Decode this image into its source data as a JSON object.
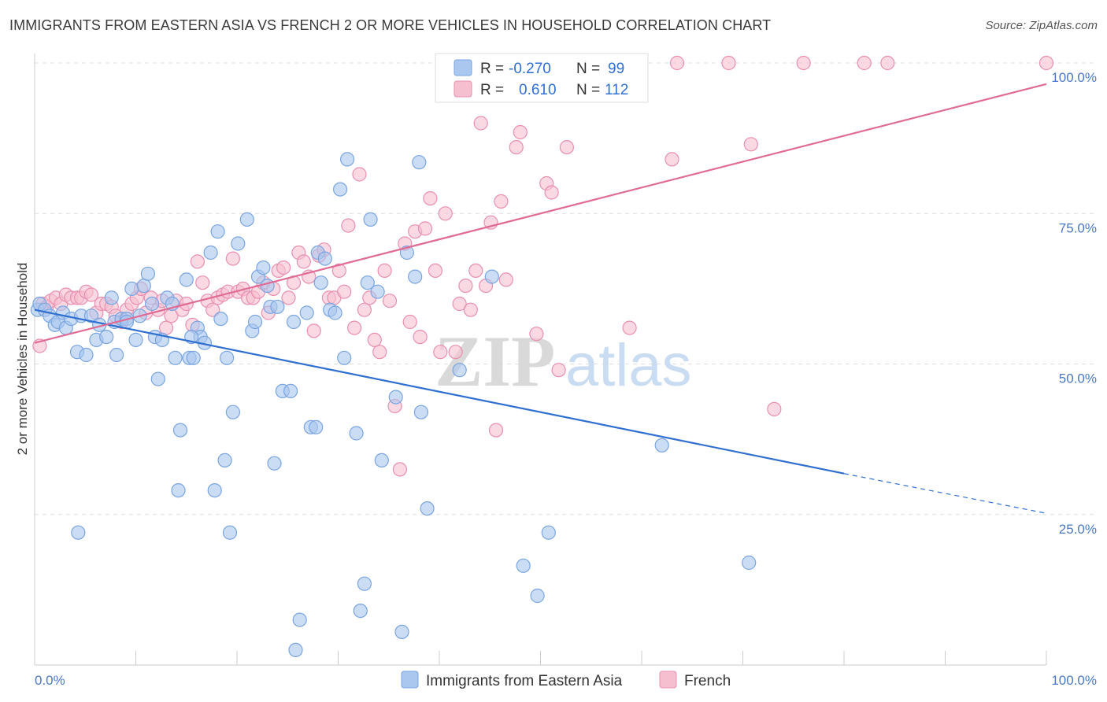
{
  "title": "IMMIGRANTS FROM EASTERN ASIA VS FRENCH 2 OR MORE VEHICLES IN HOUSEHOLD CORRELATION CHART",
  "source": "Source: ZipAtlas.com",
  "watermark": {
    "zip": "ZIP",
    "atlas": "atlas"
  },
  "colors": {
    "blue": "#a9c7ef",
    "blue_line": "#2f6fd0",
    "blue_stroke": "#7aa5e0",
    "pink": "#f6bfd0",
    "pink_line": "#e06c95",
    "pink_stroke": "#e98fb0",
    "axis_text": "#4a78c4",
    "grid": "#dddddd"
  },
  "stats_legend": {
    "row1": {
      "r_label": "R =",
      "r_value": "-0.270",
      "n_label": "N =",
      "n_value": "99"
    },
    "row2": {
      "r_label": "R =",
      "r_value": "0.610",
      "n_label": "N =",
      "n_value": "112"
    }
  },
  "chart_data": {
    "type": "scatter",
    "title": "IMMIGRANTS FROM EASTERN ASIA VS FRENCH 2 OR MORE VEHICLES IN HOUSEHOLD CORRELATION CHART",
    "xlabel": "",
    "ylabel": "2 or more Vehicles in Household",
    "xlim": [
      0,
      100
    ],
    "ylim": [
      0,
      100
    ],
    "x_tick_labels": [
      "0.0%",
      "100.0%"
    ],
    "y_tick_labels": [
      "25.0%",
      "50.0%",
      "75.0%",
      "100.0%"
    ],
    "y_ticks": [
      25,
      50,
      75,
      100
    ],
    "grid": true,
    "legend_position": "bottom",
    "series": [
      {
        "name": "Immigrants from Eastern Asia",
        "color": "#a9c7ef",
        "r": -0.27,
        "n": 99,
        "trend": {
          "x0": 0,
          "y0": 59,
          "x1": 80,
          "y1": 31.8,
          "dash_to_x": 100,
          "dash_to_y": 25.2
        },
        "points": [
          [
            0.3,
            59
          ],
          [
            0.5,
            60
          ],
          [
            1,
            59
          ],
          [
            1.5,
            58
          ],
          [
            2,
            56.5
          ],
          [
            2.3,
            57
          ],
          [
            2.8,
            58.5
          ],
          [
            3.1,
            56
          ],
          [
            3.6,
            57.5
          ],
          [
            4.2,
            52
          ],
          [
            4.6,
            58
          ],
          [
            5.1,
            51.5
          ],
          [
            5.6,
            58
          ],
          [
            6.1,
            54
          ],
          [
            6.4,
            56.5
          ],
          [
            7.1,
            54.5
          ],
          [
            7.6,
            61
          ],
          [
            7.9,
            57
          ],
          [
            8.1,
            51.5
          ],
          [
            8.6,
            57.5
          ],
          [
            9.1,
            57.5
          ],
          [
            9.6,
            62.5
          ],
          [
            10,
            54
          ],
          [
            10.4,
            58
          ],
          [
            10.8,
            63
          ],
          [
            11.2,
            65
          ],
          [
            11.6,
            60
          ],
          [
            11.9,
            54.5
          ],
          [
            12.2,
            47.5
          ],
          [
            12.6,
            54
          ],
          [
            13.1,
            61
          ],
          [
            13.6,
            60
          ],
          [
            13.9,
            51
          ],
          [
            14.2,
            29
          ],
          [
            14.4,
            39
          ],
          [
            15,
            64
          ],
          [
            15.3,
            51
          ],
          [
            15.7,
            51
          ],
          [
            16.1,
            56
          ],
          [
            16.4,
            54.5
          ],
          [
            16.8,
            53.5
          ],
          [
            17.4,
            68.5
          ],
          [
            17.8,
            29
          ],
          [
            18.1,
            72
          ],
          [
            18.4,
            57.5
          ],
          [
            18.8,
            34
          ],
          [
            19,
            51
          ],
          [
            19.3,
            22
          ],
          [
            19.6,
            42
          ],
          [
            20.1,
            70
          ],
          [
            21,
            74
          ],
          [
            21.5,
            55.5
          ],
          [
            21.8,
            57
          ],
          [
            22.1,
            64.5
          ],
          [
            22.6,
            66
          ],
          [
            23,
            63
          ],
          [
            23.3,
            59.5
          ],
          [
            23.7,
            33.5
          ],
          [
            24,
            59.5
          ],
          [
            24.5,
            45.5
          ],
          [
            25.3,
            45.5
          ],
          [
            25.6,
            57
          ],
          [
            25.8,
            2.5
          ],
          [
            26.2,
            7.5
          ],
          [
            26.9,
            58.5
          ],
          [
            27.3,
            39.5
          ],
          [
            27.8,
            39.5
          ],
          [
            28,
            68.5
          ],
          [
            28.3,
            63.5
          ],
          [
            28.7,
            67.5
          ],
          [
            29.2,
            59
          ],
          [
            29.7,
            58.5
          ],
          [
            30.2,
            79
          ],
          [
            30.6,
            51
          ],
          [
            30.9,
            84
          ],
          [
            31.8,
            38.5
          ],
          [
            32.2,
            9
          ],
          [
            32.6,
            13.5
          ],
          [
            32.9,
            63.5
          ],
          [
            33.2,
            74
          ],
          [
            33.9,
            62
          ],
          [
            34.3,
            34
          ],
          [
            35.7,
            44.5
          ],
          [
            36.3,
            5.5
          ],
          [
            36.8,
            68.5
          ],
          [
            37.6,
            64.5
          ],
          [
            38,
            83.5
          ],
          [
            38.2,
            42
          ],
          [
            38.8,
            26
          ],
          [
            42,
            49
          ],
          [
            45.2,
            64.5
          ],
          [
            48.3,
            16.5
          ],
          [
            49.7,
            11.5
          ],
          [
            50.8,
            22
          ],
          [
            62,
            36.5
          ],
          [
            70.6,
            17
          ],
          [
            4.3,
            22
          ],
          [
            9.1,
            57
          ],
          [
            15.5,
            54.5
          ]
        ]
      },
      {
        "name": "French",
        "color": "#f6bfd0",
        "r": 0.61,
        "n": 112,
        "trend": {
          "x0": 0,
          "y0": 53.5,
          "x1": 100,
          "y1": 96.5
        },
        "points": [
          [
            0.5,
            53
          ],
          [
            0.8,
            60
          ],
          [
            1.2,
            59.5
          ],
          [
            1.6,
            60.5
          ],
          [
            2.1,
            61
          ],
          [
            2.6,
            60
          ],
          [
            3.1,
            61.5
          ],
          [
            3.6,
            61
          ],
          [
            4.2,
            61
          ],
          [
            4.6,
            61
          ],
          [
            5.1,
            62
          ],
          [
            5.6,
            61.5
          ],
          [
            6.1,
            58.5
          ],
          [
            6.6,
            60
          ],
          [
            7.1,
            60
          ],
          [
            7.6,
            59.5
          ],
          [
            8,
            58
          ],
          [
            8.6,
            57
          ],
          [
            9.1,
            59
          ],
          [
            9.6,
            60
          ],
          [
            10.1,
            61
          ],
          [
            10.5,
            62.5
          ],
          [
            11,
            58.5
          ],
          [
            11.5,
            61
          ],
          [
            12.2,
            59
          ],
          [
            12.6,
            60.5
          ],
          [
            13,
            56
          ],
          [
            13.5,
            58
          ],
          [
            14,
            60.5
          ],
          [
            14.6,
            59
          ],
          [
            15,
            60
          ],
          [
            15.6,
            56.5
          ],
          [
            16.1,
            67
          ],
          [
            16.6,
            63.5
          ],
          [
            17.1,
            60.5
          ],
          [
            17.6,
            59
          ],
          [
            18.1,
            61
          ],
          [
            18.6,
            61.5
          ],
          [
            19.1,
            62
          ],
          [
            19.6,
            67.5
          ],
          [
            20.1,
            62
          ],
          [
            20.6,
            62.5
          ],
          [
            21.1,
            61
          ],
          [
            21.6,
            61
          ],
          [
            22.1,
            62
          ],
          [
            22.6,
            63.5
          ],
          [
            23.1,
            58.5
          ],
          [
            23.6,
            62.5
          ],
          [
            24.1,
            65.5
          ],
          [
            24.6,
            66
          ],
          [
            25.1,
            61
          ],
          [
            25.6,
            63.5
          ],
          [
            26.1,
            68.5
          ],
          [
            26.6,
            67
          ],
          [
            27.1,
            64.5
          ],
          [
            27.6,
            55.5
          ],
          [
            28.1,
            68
          ],
          [
            28.6,
            69
          ],
          [
            29.1,
            61
          ],
          [
            29.6,
            61
          ],
          [
            30.1,
            65.5
          ],
          [
            30.6,
            62
          ],
          [
            31,
            73
          ],
          [
            31.6,
            56
          ],
          [
            32.1,
            81.5
          ],
          [
            32.6,
            59
          ],
          [
            33.1,
            61
          ],
          [
            33.6,
            54
          ],
          [
            34.1,
            52
          ],
          [
            34.6,
            65.5
          ],
          [
            35.1,
            60.5
          ],
          [
            35.6,
            43
          ],
          [
            36.1,
            32.5
          ],
          [
            36.6,
            70
          ],
          [
            37.1,
            57
          ],
          [
            37.6,
            72
          ],
          [
            38.1,
            54.5
          ],
          [
            38.6,
            72.5
          ],
          [
            39.1,
            77.5
          ],
          [
            39.6,
            65.5
          ],
          [
            40.1,
            52
          ],
          [
            40.6,
            75
          ],
          [
            41.6,
            52
          ],
          [
            42,
            60
          ],
          [
            42.6,
            63
          ],
          [
            43.1,
            59
          ],
          [
            43.6,
            65.5
          ],
          [
            44.1,
            90
          ],
          [
            44.6,
            63
          ],
          [
            45.1,
            73.5
          ],
          [
            45.6,
            39
          ],
          [
            46.1,
            77
          ],
          [
            46.6,
            64
          ],
          [
            47.6,
            86
          ],
          [
            48,
            88.5
          ],
          [
            49.6,
            55
          ],
          [
            50.6,
            80
          ],
          [
            51.1,
            78.5
          ],
          [
            51.8,
            49
          ],
          [
            52.6,
            86
          ],
          [
            52.8,
            100
          ],
          [
            56.8,
            100
          ],
          [
            58.8,
            56
          ],
          [
            63,
            84
          ],
          [
            63.5,
            100
          ],
          [
            68.6,
            100
          ],
          [
            70.8,
            86.5
          ],
          [
            73.1,
            42.5
          ],
          [
            76,
            100
          ],
          [
            82,
            100
          ],
          [
            84.3,
            100
          ],
          [
            100,
            100
          ]
        ]
      }
    ]
  }
}
